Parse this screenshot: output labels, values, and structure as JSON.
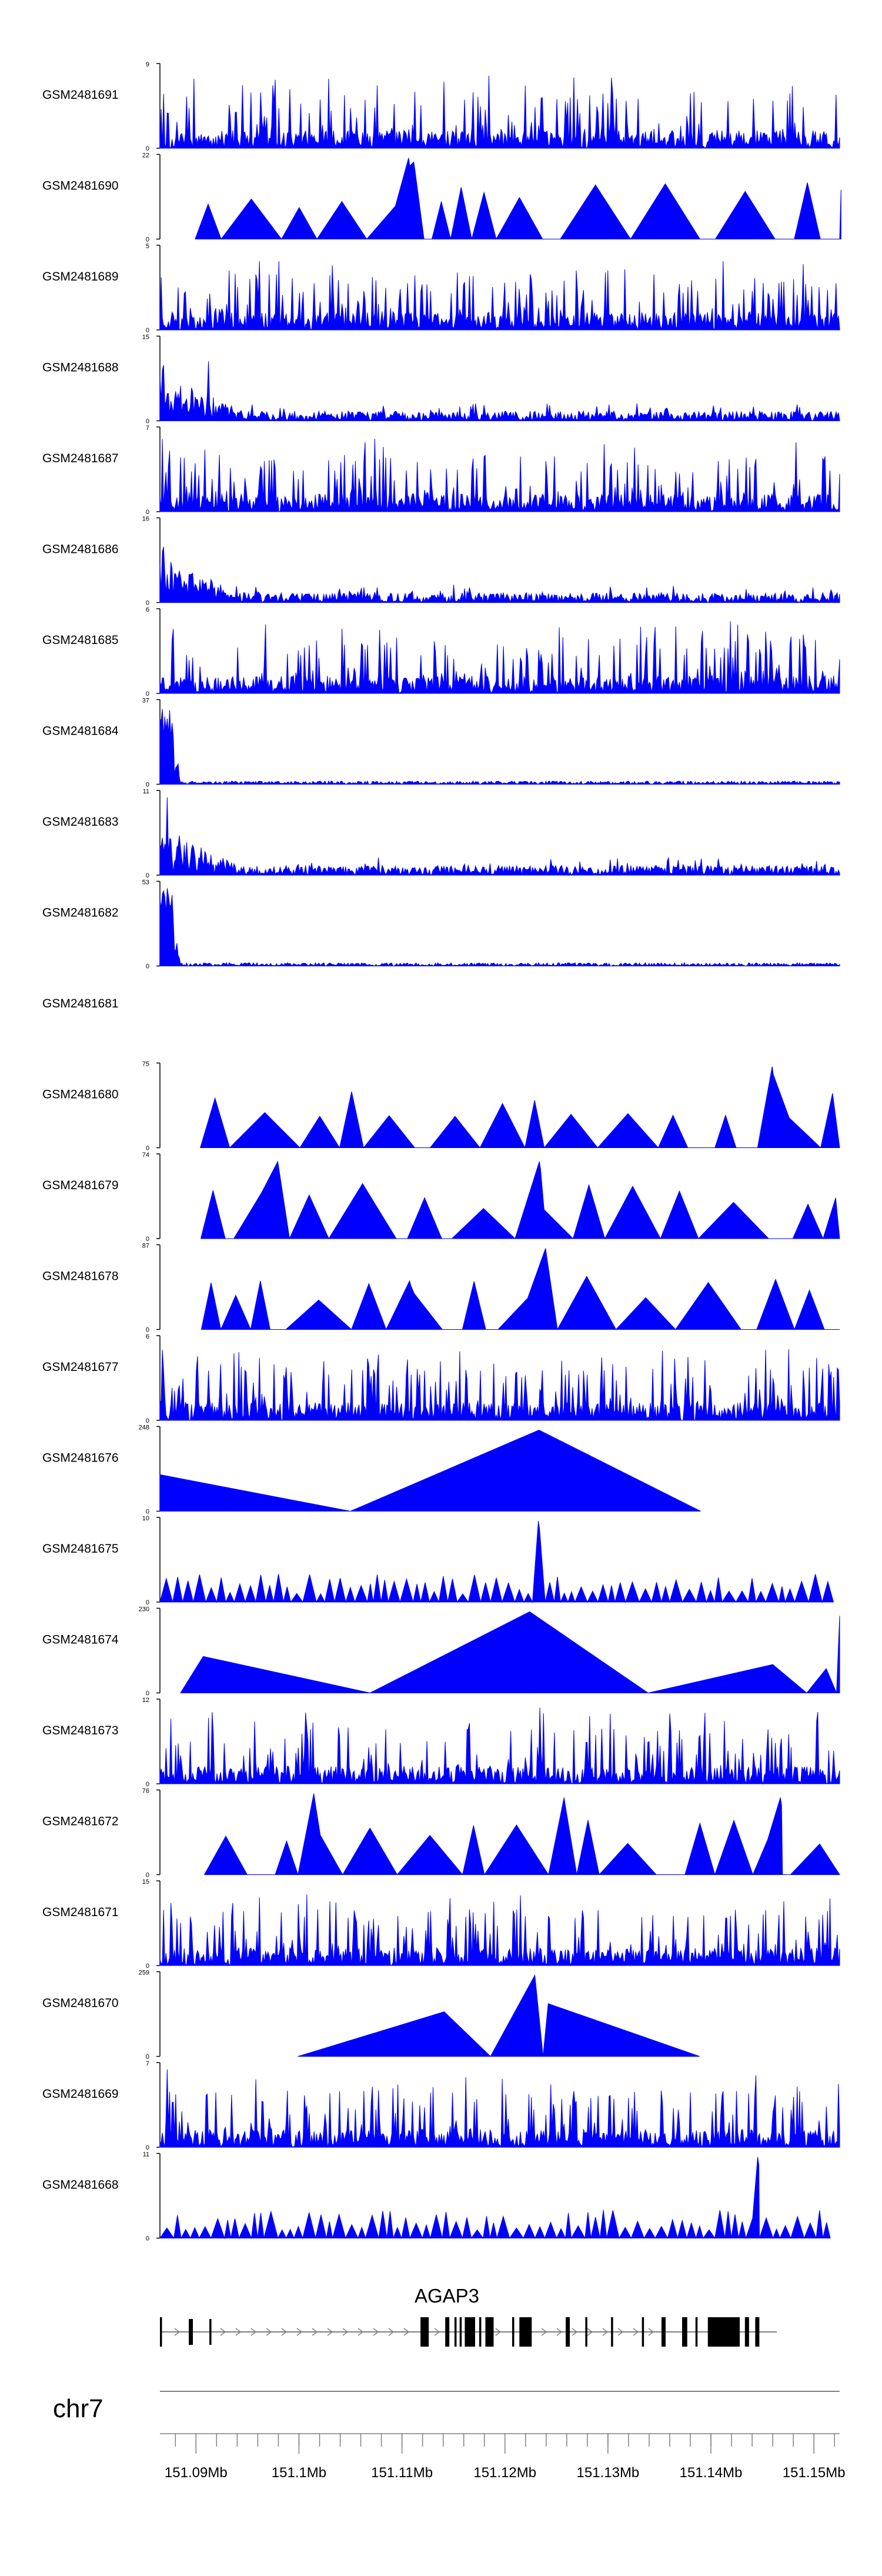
{
  "chart_data": {
    "type": "area",
    "title": "",
    "chromosome": "chr7",
    "gene_label": "AGAP3",
    "x_ticks": [
      "151.09Mb",
      "151.1Mb",
      "151.11Mb",
      "151.12Mb",
      "151.13Mb",
      "151.14Mb",
      "151.15Mb"
    ],
    "x_tick_values": [
      151.09,
      151.1,
      151.11,
      151.12,
      151.13,
      151.14,
      151.15
    ],
    "xlim": [
      151.0865,
      151.1525
    ],
    "tracks": [
      {
        "name": "GSM2481691",
        "ymax": 9,
        "pattern": "noisy",
        "seed": 11,
        "peaks": []
      },
      {
        "name": "GSM2481690",
        "ymax": 22,
        "pattern": "sparse",
        "seed": 12,
        "peaks": [
          [
            151.1107,
            1.0
          ],
          [
            151.1112,
            0.95
          ]
        ]
      },
      {
        "name": "GSM2481689",
        "ymax": 5,
        "pattern": "noisy",
        "seed": 13,
        "peaks": [
          [
            151.1225,
            1.0
          ]
        ]
      },
      {
        "name": "GSM2481688",
        "ymax": 15,
        "pattern": "decay",
        "seed": 14,
        "peaks": [
          [
            151.0868,
            1.0
          ],
          [
            151.0912,
            0.8
          ]
        ]
      },
      {
        "name": "GSM2481687",
        "ymax": 7,
        "pattern": "noisy",
        "seed": 15,
        "peaks": [
          [
            151.0874,
            1.0
          ]
        ]
      },
      {
        "name": "GSM2481686",
        "ymax": 16,
        "pattern": "decay",
        "seed": 16,
        "peaks": [
          [
            151.0868,
            1.0
          ],
          [
            151.0915,
            0.4
          ]
        ]
      },
      {
        "name": "GSM2481685",
        "ymax": 6,
        "pattern": "noisy",
        "seed": 17,
        "peaks": []
      },
      {
        "name": "GSM2481684",
        "ymax": 37,
        "pattern": "spike",
        "seed": 18,
        "peaks": [
          [
            151.087,
            1.0
          ]
        ]
      },
      {
        "name": "GSM2481683",
        "ymax": 11,
        "pattern": "decay",
        "seed": 19,
        "peaks": [
          [
            151.0872,
            1.0
          ]
        ]
      },
      {
        "name": "GSM2481682",
        "ymax": 53,
        "pattern": "spike",
        "seed": 20,
        "peaks": [
          [
            151.0872,
            1.0
          ]
        ]
      },
      {
        "name": "GSM2481681",
        "ymax": null,
        "pattern": "empty",
        "seed": 21,
        "peaks": []
      },
      {
        "name": "GSM2481680",
        "ymax": 75,
        "pattern": "sparse",
        "seed": 22,
        "peaks": [
          [
            151.146,
            1.0
          ]
        ]
      },
      {
        "name": "GSM2481679",
        "ymax": 74,
        "pattern": "sparse",
        "seed": 23,
        "peaks": [
          [
            151.098,
            0.95
          ],
          [
            151.1234,
            0.95
          ]
        ]
      },
      {
        "name": "GSM2481678",
        "ymax": 87,
        "pattern": "sparse",
        "seed": 24,
        "peaks": [
          [
            151.124,
            1.0
          ],
          [
            151.1108,
            0.6
          ]
        ]
      },
      {
        "name": "GSM2481677",
        "ymax": 6,
        "pattern": "noisy",
        "seed": 25,
        "peaks": [
          [
            151.1105,
            1.0
          ]
        ]
      },
      {
        "name": "GSM2481676",
        "ymax": 248,
        "pattern": "tents",
        "seed": 26,
        "points": [
          [
            151.0865,
            0.45
          ],
          [
            151.105,
            0
          ],
          [
            151.1233,
            1.0
          ],
          [
            151.139,
            0
          ]
        ]
      },
      {
        "name": "GSM2481675",
        "ymax": 10,
        "pattern": "teeth",
        "seed": 27,
        "peaks": [
          [
            151.1233,
            1.0
          ]
        ]
      },
      {
        "name": "GSM2481674",
        "ymax": 230,
        "pattern": "tents",
        "seed": 28,
        "points": [
          [
            151.0885,
            0
          ],
          [
            151.0907,
            0.45
          ],
          [
            151.1069,
            0
          ],
          [
            151.1224,
            1.0
          ],
          [
            151.1339,
            0
          ],
          [
            151.146,
            0.35
          ],
          [
            151.1493,
            0
          ],
          [
            151.1512,
            0.3
          ],
          [
            151.1522,
            0
          ],
          [
            151.1525,
            0.95
          ]
        ]
      },
      {
        "name": "GSM2481673",
        "ymax": 12,
        "pattern": "noisy",
        "seed": 29,
        "peaks": [
          [
            151.1234,
            1.0
          ]
        ]
      },
      {
        "name": "GSM2481672",
        "ymax": 76,
        "pattern": "sparse",
        "seed": 30,
        "peaks": [
          [
            151.1015,
            1.0
          ],
          [
            151.1258,
            0.95
          ],
          [
            151.1468,
            0.95
          ]
        ]
      },
      {
        "name": "GSM2481671",
        "ymax": 15,
        "pattern": "noisy",
        "seed": 31,
        "peaks": [
          [
            151.0876,
            1.0
          ]
        ]
      },
      {
        "name": "GSM2481670",
        "ymax": 259,
        "pattern": "tents",
        "seed": 32,
        "points": [
          [
            151.0999,
            0
          ],
          [
            151.1141,
            0.55
          ],
          [
            151.1186,
            0
          ],
          [
            151.1229,
            1.0
          ],
          [
            151.1237,
            0
          ],
          [
            151.1242,
            0.65
          ],
          [
            151.1389,
            0
          ]
        ]
      },
      {
        "name": "GSM2481669",
        "ymax": 7,
        "pattern": "noisy",
        "seed": 33,
        "peaks": [
          [
            151.0872,
            1.0
          ]
        ]
      },
      {
        "name": "GSM2481668",
        "ymax": 11,
        "pattern": "teeth",
        "seed": 34,
        "peaks": [
          [
            151.1446,
            1.0
          ]
        ]
      }
    ],
    "gene_model": {
      "start": 151.0865,
      "end": 151.1464,
      "exons": [
        [
          151.0865,
          151.0867
        ],
        [
          151.0893,
          151.0897
        ],
        [
          151.0913,
          151.0915
        ],
        [
          151.1118,
          151.1126
        ],
        [
          151.1142,
          151.1146
        ],
        [
          151.1151,
          151.1153
        ],
        [
          151.1156,
          151.1158
        ],
        [
          151.1161,
          151.1171
        ],
        [
          151.1175,
          151.1177
        ],
        [
          151.1181,
          151.1189
        ],
        [
          151.1207,
          151.1209
        ],
        [
          151.1214,
          151.1226
        ],
        [
          151.1259,
          151.1263
        ],
        [
          151.1278,
          151.128
        ],
        [
          151.1303,
          151.1305
        ],
        [
          151.1333,
          151.1335
        ],
        [
          151.1352,
          151.1356
        ],
        [
          151.1372,
          151.1377
        ],
        [
          151.1385,
          151.1387
        ],
        [
          151.1397,
          151.1428
        ],
        [
          151.1433,
          151.1437
        ],
        [
          151.1443,
          151.1447
        ]
      ],
      "colors": {
        "exon": "#000000",
        "intron": "#7f7f7f"
      }
    },
    "colors": {
      "signal": "#0000ff",
      "axis": "#000000",
      "ruler": "#808080"
    }
  }
}
